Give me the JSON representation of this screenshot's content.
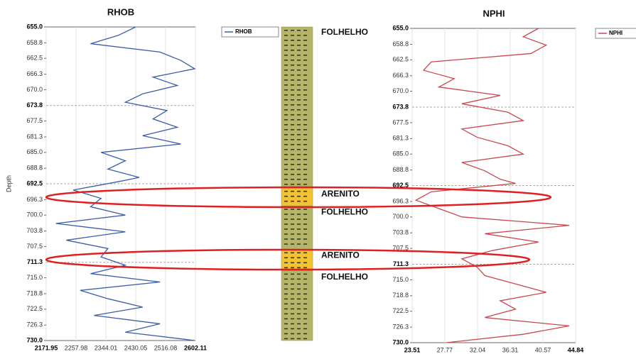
{
  "chart_data": [
    {
      "type": "line",
      "title": "RHOB",
      "ylabel": "Depth",
      "series": [
        {
          "name": "RHOB",
          "color": "#3a5da8",
          "values": [
            2430,
            2380,
            2300,
            2500,
            2560,
            2600,
            2480,
            2550,
            2450,
            2400,
            2520,
            2480,
            2550,
            2450,
            2560,
            2330,
            2400,
            2350,
            2440,
            2380,
            2250,
            2330,
            2300,
            2400,
            2200,
            2400,
            2230,
            2350,
            2330,
            2400,
            2300,
            2500,
            2270,
            2350,
            2450,
            2310,
            2500,
            2400,
            2600
          ]
        }
      ],
      "y": [
        655,
        657,
        659,
        661,
        663,
        665,
        667,
        669,
        671,
        673,
        675,
        677,
        679,
        681,
        683,
        685,
        687,
        689,
        691,
        692,
        694,
        696,
        698,
        700,
        702,
        704,
        706,
        708,
        710,
        712,
        714,
        716,
        718,
        720,
        722,
        724,
        726,
        728,
        730
      ],
      "xlim": [
        2171.95,
        2602.11
      ],
      "ylim": [
        655,
        730
      ],
      "y_inverted": true,
      "xticks": [
        2171.95,
        2257.98,
        2344.01,
        2430.05,
        2516.08,
        2602.11
      ],
      "yticks": [
        {
          "value": 655,
          "label": "655.0"
        },
        658.8,
        662.5,
        666.3,
        {
          "value": 670,
          "label": "670.0"
        },
        673.8,
        677.5,
        681.3,
        {
          "value": 685,
          "label": "685.0"
        },
        688.8,
        692.5,
        696.3,
        {
          "value": 700,
          "label": "700.0"
        },
        703.8,
        707.5,
        711.3,
        {
          "value": 715,
          "label": "715.0"
        },
        718.8,
        722.5,
        726.3,
        {
          "value": 730,
          "label": "730.0"
        }
      ],
      "major_every": 5,
      "grid": true
    },
    {
      "type": "line",
      "title": "NPHI",
      "series": [
        {
          "name": "NPHI",
          "color": "#c9474f",
          "values": [
            40,
            38,
            41,
            39,
            26,
            25,
            29,
            27,
            35,
            30,
            36,
            38,
            30,
            32,
            36,
            38,
            30,
            33,
            35,
            37,
            26,
            24,
            27,
            30,
            44,
            33,
            40,
            34,
            30,
            32,
            33,
            37,
            41,
            35,
            37,
            33,
            44,
            38,
            28
          ]
        }
      ],
      "y": [
        655,
        657,
        659,
        661,
        663,
        665,
        667,
        669,
        671,
        673,
        675,
        677,
        679,
        681,
        683,
        685,
        687,
        689,
        691,
        692,
        694,
        696,
        698,
        700,
        702,
        704,
        706,
        708,
        710,
        712,
        714,
        716,
        718,
        720,
        722,
        724,
        726,
        728,
        730
      ],
      "xlim": [
        23.51,
        44.84
      ],
      "ylim": [
        655,
        730
      ],
      "y_inverted": true,
      "xticks": [
        23.51,
        27.77,
        32.04,
        36.31,
        40.57,
        44.84
      ],
      "yticks": [
        {
          "value": 655,
          "label": "655.0"
        },
        658.8,
        662.5,
        666.3,
        {
          "value": 670,
          "label": "670.0"
        },
        673.8,
        677.5,
        681.3,
        {
          "value": 685,
          "label": "685.0"
        },
        688.8,
        692.5,
        696.3,
        {
          "value": 700,
          "label": "700.0"
        },
        703.8,
        707.5,
        711.3,
        {
          "value": 715,
          "label": "715.0"
        },
        718.8,
        722.5,
        726.3,
        {
          "value": 730,
          "label": "730.0"
        }
      ],
      "major_every": 5,
      "grid": true
    },
    {
      "type": "lithology",
      "ylim": [
        655,
        730
      ],
      "layers": [
        {
          "label": "FOLHELHO",
          "top": 655,
          "bottom": 693.5,
          "color": "#b5b56a"
        },
        {
          "label": "ARENITO",
          "top": 693.5,
          "bottom": 697.8,
          "color": "#f2c232"
        },
        {
          "label": "FOLHELHO",
          "top": 697.8,
          "bottom": 708.2,
          "color": "#b5b56a"
        },
        {
          "label": "ARENITO",
          "top": 708.2,
          "bottom": 713.3,
          "color": "#f2c232"
        },
        {
          "label": "FOLHELHO",
          "top": 713.3,
          "bottom": 730,
          "color": "#b5b56a"
        }
      ]
    }
  ]
}
